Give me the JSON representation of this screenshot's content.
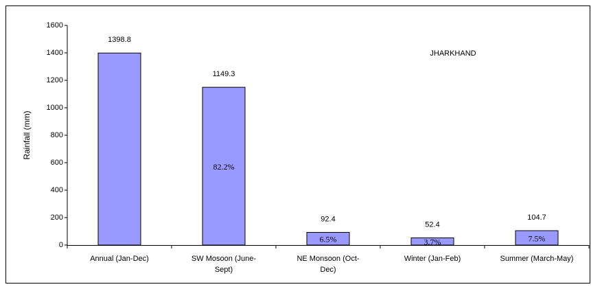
{
  "chart_data": {
    "type": "bar",
    "annotation": "JHARKHAND",
    "y_label": "Rainfall (mm)",
    "categories": [
      "Annual (Jan-Dec)",
      "SW Mosoon (June-Sept)",
      "NE Monsoon (Oct-Dec)",
      "Winter (Jan-Feb)",
      "Summer (March-May)"
    ],
    "values": [
      1398.8,
      1149.3,
      92.4,
      52.4,
      104.7
    ],
    "bar_labels": [
      null,
      "82.2%",
      "6.5%",
      "3.7%",
      "7.5%"
    ],
    "color": "#9999ff",
    "ylim": [
      0,
      1600
    ],
    "yticks": [
      0,
      200,
      400,
      600,
      800,
      1000,
      1200,
      1400,
      1600
    ],
    "grid": false
  }
}
